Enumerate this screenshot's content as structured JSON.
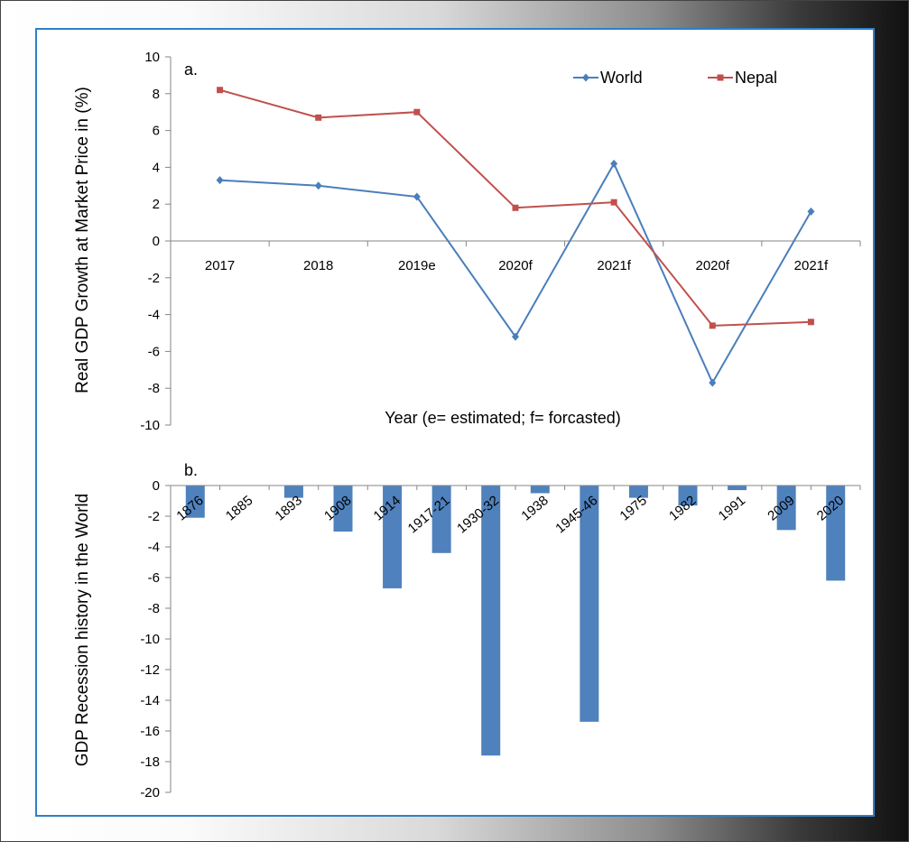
{
  "chart_data": [
    {
      "type": "line",
      "panel_label": "a.",
      "xlabel": "Year (e= estimated; f= forcasted)",
      "ylabel": "Real GDP Growth at Market Price in (%)",
      "ylim": [
        -10,
        10
      ],
      "yticks": [
        -10,
        -8,
        -6,
        -4,
        -2,
        0,
        2,
        4,
        6,
        8,
        10
      ],
      "legend_position": "top-right",
      "categories": [
        "2017",
        "2018",
        "2019e",
        "2020f",
        "2021f",
        "2020f",
        "2021f"
      ],
      "series": [
        {
          "name": "World",
          "color": "#4a7ebb",
          "marker": "diamond",
          "values": [
            3.3,
            3.0,
            2.4,
            -5.2,
            4.2,
            -7.7,
            1.6
          ]
        },
        {
          "name": "Nepal",
          "color": "#c0504d",
          "marker": "square",
          "values": [
            8.2,
            6.7,
            7.0,
            1.8,
            2.1,
            -4.6,
            -4.4
          ]
        }
      ]
    },
    {
      "type": "bar",
      "panel_label": "b.",
      "ylabel": "GDP Recession history in the World",
      "ylim": [
        -20,
        0
      ],
      "yticks": [
        -20,
        -18,
        -16,
        -14,
        -12,
        -10,
        -8,
        -6,
        -4,
        -2,
        0
      ],
      "color": "#4f81bd",
      "categories": [
        "1876",
        "1885",
        "1893",
        "1908",
        "1914",
        "1917-21",
        "1930-32",
        "1938",
        "1945-46",
        "1975",
        "1982",
        "1991",
        "2009",
        "2020"
      ],
      "values": [
        -2.1,
        0,
        -0.8,
        -3.0,
        -6.7,
        -4.4,
        -17.6,
        -0.5,
        -15.4,
        -0.8,
        -1.3,
        -0.3,
        -2.9,
        -6.2
      ]
    }
  ]
}
